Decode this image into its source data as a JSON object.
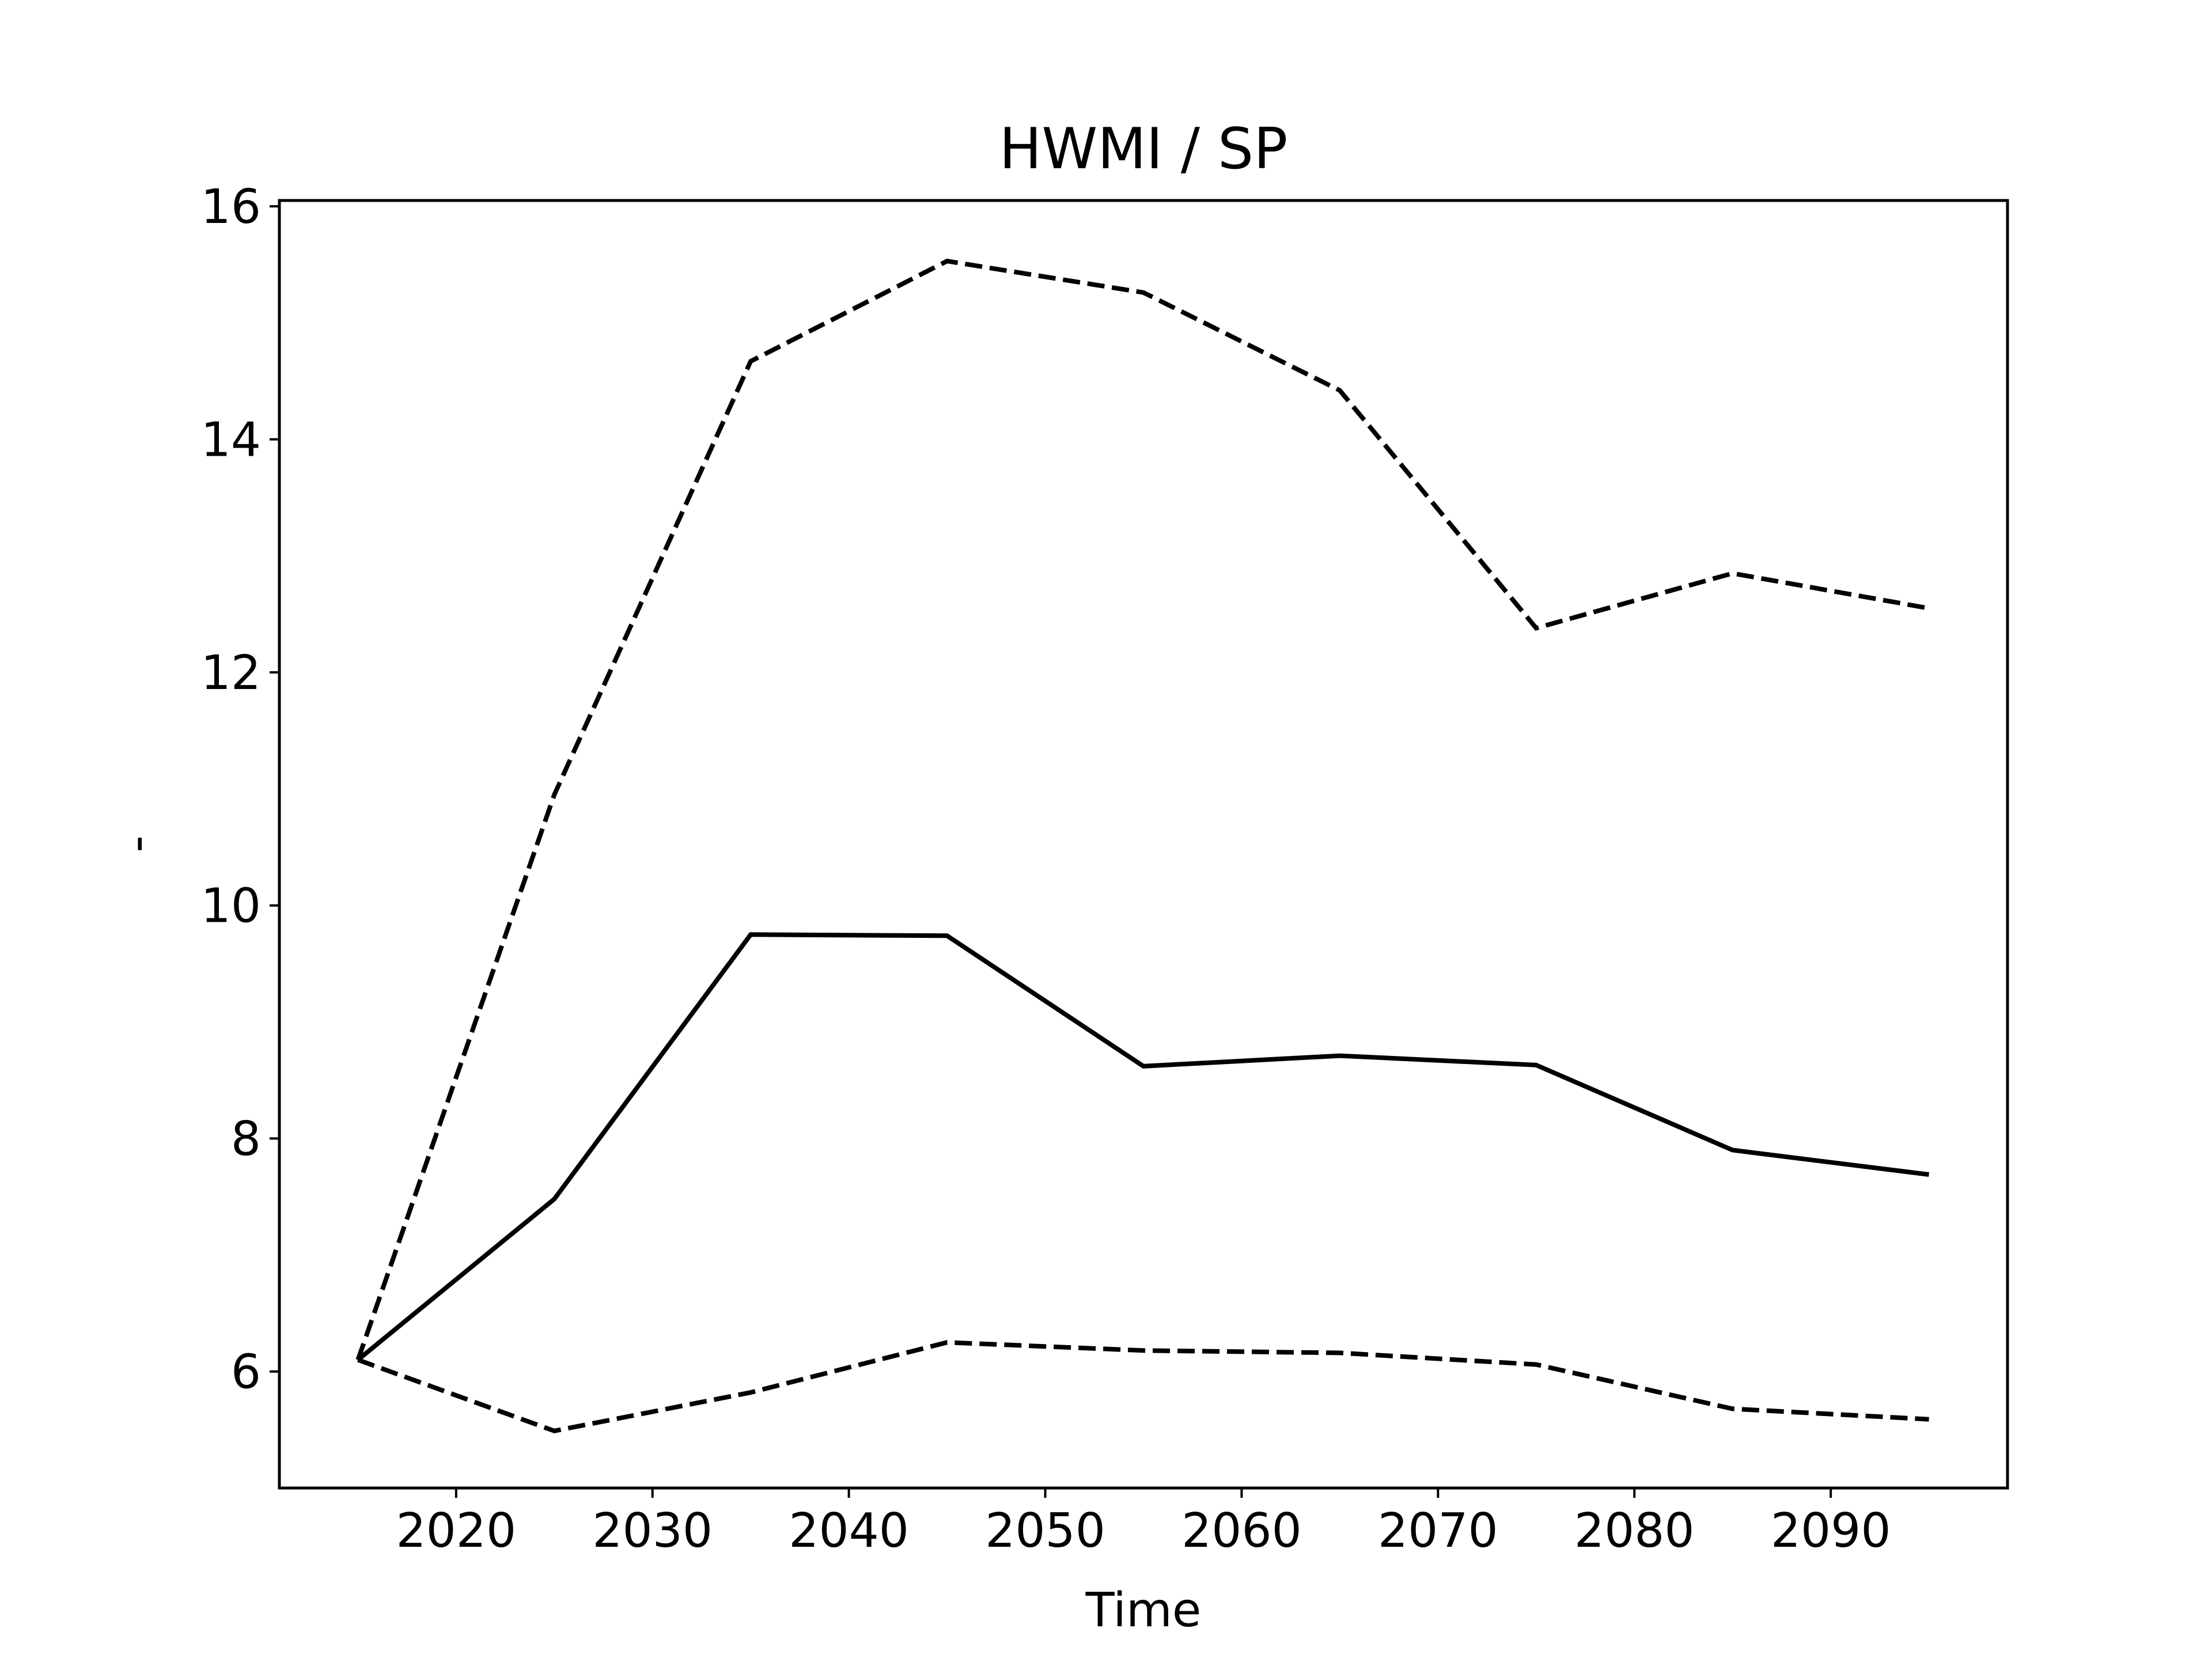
{
  "chart_data": {
    "type": "line",
    "title": "HWMI / SP",
    "xlabel": "Time",
    "ylabel": "-",
    "xlim": [
      2011,
      2099
    ],
    "ylim": [
      5,
      16.05
    ],
    "xticks": [
      2020,
      2030,
      2040,
      2050,
      2060,
      2070,
      2080,
      2090
    ],
    "yticks": [
      6,
      8,
      10,
      12,
      14,
      16
    ],
    "grid": false,
    "legend": "none",
    "line_color": "#000000",
    "x": [
      2015,
      2025,
      2035,
      2045,
      2055,
      2065,
      2075,
      2085,
      2095
    ],
    "series": [
      {
        "style": "dashed",
        "values": [
          6.1,
          10.95,
          14.67,
          15.53,
          15.26,
          14.42,
          12.38,
          12.85,
          12.55
        ]
      },
      {
        "style": "solid",
        "values": [
          6.1,
          7.48,
          9.75,
          9.74,
          8.62,
          8.71,
          8.63,
          7.9,
          7.69
        ]
      },
      {
        "style": "dashed",
        "values": [
          6.1,
          5.49,
          5.82,
          6.25,
          6.18,
          6.16,
          6.06,
          5.68,
          5.59
        ]
      }
    ]
  }
}
